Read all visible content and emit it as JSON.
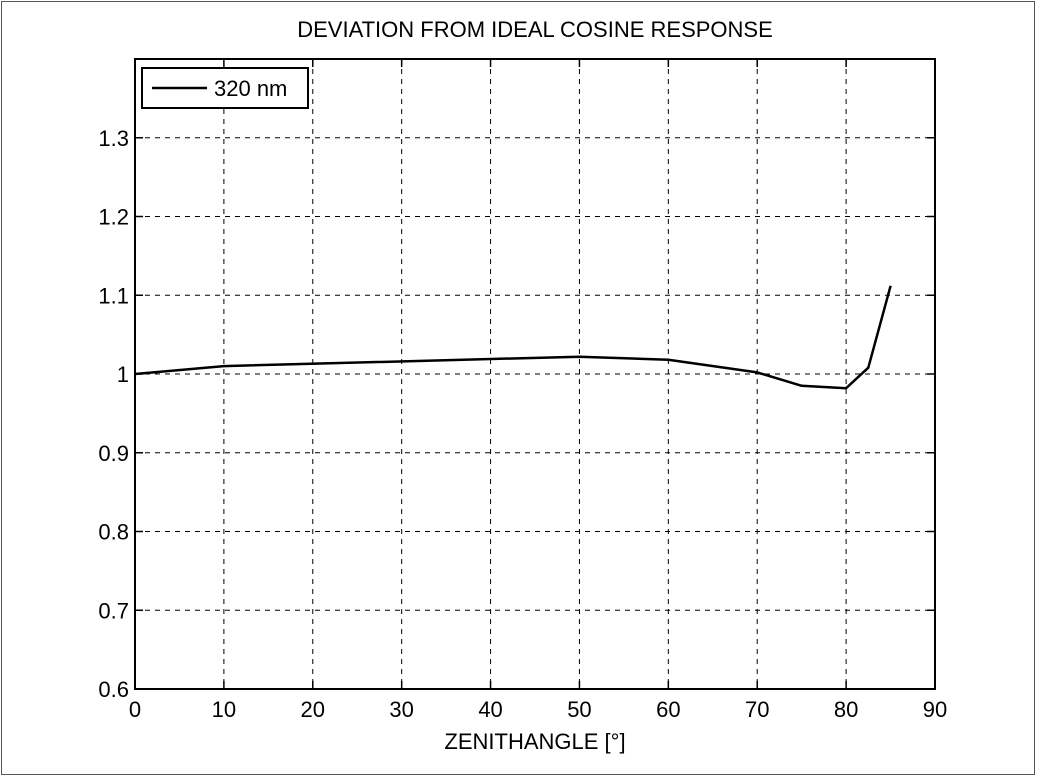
{
  "chart_data": {
    "type": "line",
    "title": "DEVIATION FROM IDEAL COSINE RESPONSE",
    "xlabel": "ZENITHANGLE [°]",
    "ylabel": "",
    "xlim": [
      0,
      90
    ],
    "ylim": [
      0.6,
      1.4
    ],
    "grid": true,
    "legend_position": "top-left",
    "x_ticks": [
      0,
      10,
      20,
      30,
      40,
      50,
      60,
      70,
      80,
      90
    ],
    "x_tick_labels": [
      "0",
      "10",
      "20",
      "30",
      "40",
      "50",
      "60",
      "70",
      "80",
      "90"
    ],
    "y_ticks": [
      0.6,
      0.7,
      0.8,
      0.9,
      1.0,
      1.1,
      1.2,
      1.3
    ],
    "y_tick_labels": [
      "0.6",
      "0.7",
      "0.8",
      "0.9",
      "1",
      "1.1",
      "1.2",
      "1.3"
    ],
    "series": [
      {
        "name": "320 nm",
        "color": "#000000",
        "x": [
          0,
          10,
          50,
          60,
          70,
          75,
          80,
          82.5,
          85
        ],
        "y": [
          1.0,
          1.01,
          1.022,
          1.018,
          1.002,
          0.985,
          0.982,
          1.008,
          1.112
        ]
      }
    ]
  }
}
